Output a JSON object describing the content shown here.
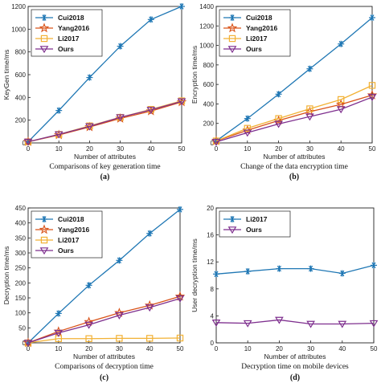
{
  "colors": {
    "Cui2018": "#1f77b4",
    "Yang2016": "#d95319",
    "Li2017": "#f2b134",
    "Ours": "#7e2f8e",
    "Li2017_d": "#1f77b4"
  },
  "chart_data": [
    {
      "type": "line",
      "panel": "(a)",
      "caption": "Comparisons of key generation time",
      "xlabel": "Number of attributes",
      "ylabel": "KeyGen time/ms",
      "xlim": [
        0,
        50
      ],
      "ylim": [
        0,
        1200
      ],
      "xticks": [
        "0",
        "10",
        "20",
        "30",
        "40",
        "50"
      ],
      "yticks": [
        "0",
        "200",
        "400",
        "600",
        "800",
        "1000",
        "1200"
      ],
      "x": [
        0,
        10,
        20,
        30,
        40,
        50
      ],
      "legend": "top-left",
      "series": [
        {
          "name": "Cui2018",
          "values": [
            10,
            285,
            575,
            850,
            1085,
            1200
          ],
          "marker": "star6",
          "color": "Cui2018"
        },
        {
          "name": "Yang2016",
          "values": [
            10,
            70,
            140,
            215,
            280,
            360
          ],
          "marker": "star5",
          "color": "Yang2016"
        },
        {
          "name": "Li2017",
          "values": [
            10,
            75,
            150,
            225,
            295,
            370
          ],
          "marker": "square",
          "color": "Li2017"
        },
        {
          "name": "Ours",
          "values": [
            10,
            75,
            145,
            225,
            290,
            365
          ],
          "marker": "tri-down",
          "color": "Ours"
        }
      ]
    },
    {
      "type": "line",
      "panel": "(b)",
      "caption": "Change of the data encryption time",
      "xlabel": "Number of attributes",
      "ylabel": "Encryption time/ms",
      "xlim": [
        0,
        50
      ],
      "ylim": [
        0,
        1400
      ],
      "xticks": [
        "0",
        "10",
        "20",
        "30",
        "40",
        "50"
      ],
      "yticks": [
        "0",
        "200",
        "400",
        "600",
        "800",
        "1000",
        "1200",
        "1400"
      ],
      "x": [
        0,
        10,
        20,
        30,
        40,
        50
      ],
      "legend": "top-left",
      "series": [
        {
          "name": "Cui2018",
          "values": [
            20,
            250,
            500,
            760,
            1015,
            1285
          ],
          "marker": "star6",
          "color": "Cui2018"
        },
        {
          "name": "Yang2016",
          "values": [
            20,
            130,
            230,
            320,
            395,
            490
          ],
          "marker": "star5",
          "color": "Yang2016"
        },
        {
          "name": "Li2017",
          "values": [
            20,
            150,
            250,
            350,
            445,
            590
          ],
          "marker": "square",
          "color": "Li2017"
        },
        {
          "name": "Ours",
          "values": [
            10,
            105,
            195,
            270,
            345,
            470
          ],
          "marker": "tri-down",
          "color": "Ours"
        }
      ]
    },
    {
      "type": "line",
      "panel": "(c)",
      "caption": "Comparisons of decryption time",
      "xlabel": "Number of attributes",
      "ylabel": "Decryption time/ms",
      "xlim": [
        0,
        50
      ],
      "ylim": [
        0,
        450
      ],
      "xticks": [
        "0",
        "10",
        "20",
        "30",
        "40",
        "50"
      ],
      "yticks": [
        "0",
        "50",
        "100",
        "150",
        "200",
        "250",
        "300",
        "350",
        "400",
        "450"
      ],
      "x": [
        0,
        10,
        20,
        30,
        40,
        50
      ],
      "legend": "top-left",
      "series": [
        {
          "name": "Cui2018",
          "values": [
            0,
            98,
            192,
            275,
            365,
            445
          ],
          "marker": "star6",
          "color": "Cui2018"
        },
        {
          "name": "Yang2016",
          "values": [
            0,
            38,
            70,
            100,
            125,
            155
          ],
          "marker": "star5",
          "color": "Yang2016"
        },
        {
          "name": "Li2017",
          "values": [
            0,
            14,
            14,
            15,
            15,
            16
          ],
          "marker": "square",
          "color": "Li2017"
        },
        {
          "name": "Ours",
          "values": [
            0,
            33,
            60,
            92,
            118,
            148
          ],
          "marker": "tri-down",
          "color": "Ours"
        }
      ]
    },
    {
      "type": "line",
      "panel": "(d)",
      "caption": "Decryption time on mobile devices",
      "xlabel": "Number of attributes",
      "ylabel": "User decryption time/ms",
      "xlim": [
        0,
        50
      ],
      "ylim": [
        0,
        20
      ],
      "xticks": [
        "0",
        "10",
        "20",
        "30",
        "40",
        "50"
      ],
      "yticks": [
        "0",
        "4",
        "8",
        "12",
        "16",
        "20"
      ],
      "x": [
        0,
        10,
        20,
        30,
        40,
        50
      ],
      "legend": "top-left",
      "series": [
        {
          "name": "Li2017",
          "values": [
            10.2,
            10.6,
            11.0,
            11.0,
            10.3,
            11.5
          ],
          "marker": "star6",
          "color": "Li2017_d"
        },
        {
          "name": "Ours",
          "values": [
            3.0,
            2.9,
            3.4,
            2.8,
            2.8,
            2.9
          ],
          "marker": "tri-down",
          "color": "Ours"
        }
      ]
    }
  ]
}
